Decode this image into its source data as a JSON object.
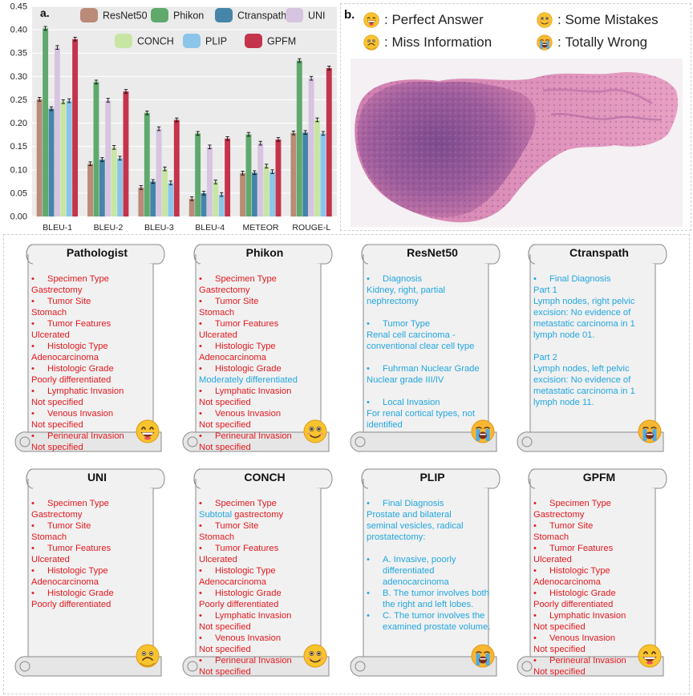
{
  "panel_a_label": "a.",
  "panel_b_label": "b.",
  "chart_data": {
    "type": "bar",
    "categories": [
      "BLEU-1",
      "BLEU-2",
      "BLEU-3",
      "BLEU-4",
      "METEOR",
      "ROUGE-L"
    ],
    "ylim": [
      0,
      0.45
    ],
    "yticks": [
      "0.00",
      "0.05",
      "0.10",
      "0.15",
      "0.20",
      "0.25",
      "0.30",
      "0.35",
      "0.40",
      "0.45"
    ],
    "grid": true,
    "legend_position": "top",
    "series": [
      {
        "name": "ResNet50",
        "color": "#b98b78",
        "values": [
          0.251,
          0.113,
          0.062,
          0.038,
          0.093,
          0.179
        ]
      },
      {
        "name": "Phikon",
        "color": "#5fa96c",
        "values": [
          0.403,
          0.288,
          0.222,
          0.178,
          0.176,
          0.334
        ]
      },
      {
        "name": "Ctranspath",
        "color": "#4585a8",
        "values": [
          0.231,
          0.122,
          0.075,
          0.05,
          0.094,
          0.18
        ]
      },
      {
        "name": "UNI",
        "color": "#d7c4e0",
        "values": [
          0.362,
          0.249,
          0.188,
          0.149,
          0.157,
          0.296
        ]
      },
      {
        "name": "CONCH",
        "color": "#c7e6a4",
        "values": [
          0.246,
          0.148,
          0.102,
          0.074,
          0.108,
          0.207
        ]
      },
      {
        "name": "PLIP",
        "color": "#8bc6ea",
        "values": [
          0.248,
          0.125,
          0.072,
          0.047,
          0.096,
          0.178
        ]
      },
      {
        "name": "GPFM",
        "color": "#c4344c",
        "values": [
          0.38,
          0.268,
          0.207,
          0.167,
          0.165,
          0.318
        ]
      }
    ]
  },
  "legend_b": {
    "perfect": "Perfect Answer",
    "some": "Some Mistakes",
    "miss": "Miss Information",
    "wrong": "Totally Wrong"
  },
  "cards": [
    {
      "title": "Pathologist",
      "emoji": "perfect",
      "lines": [
        {
          "t": "Specimen Type",
          "b": true,
          "c": "red"
        },
        {
          "t": "Gastrectomy",
          "c": "red"
        },
        {
          "t": "Tumor Site",
          "b": true,
          "c": "red"
        },
        {
          "t": "Stomach",
          "c": "red"
        },
        {
          "t": "Tumor Features",
          "b": true,
          "c": "red"
        },
        {
          "t": "Ulcerated",
          "c": "red"
        },
        {
          "t": "Histologic Type",
          "b": true,
          "c": "red"
        },
        {
          "t": "Adenocarcinoma",
          "c": "red"
        },
        {
          "t": "Histologic Grade",
          "b": true,
          "c": "red"
        },
        {
          "t": "Poorly differentiated",
          "c": "red"
        },
        {
          "t": "Lymphatic Invasion",
          "b": true,
          "c": "red"
        },
        {
          "t": "Not specified",
          "c": "red"
        },
        {
          "t": "Venous Invasion",
          "b": true,
          "c": "red"
        },
        {
          "t": "Not specified",
          "c": "red"
        },
        {
          "t": "Perineural Invasion",
          "b": true,
          "c": "red"
        },
        {
          "t": "Not specified",
          "c": "red"
        }
      ]
    },
    {
      "title": "Phikon",
      "emoji": "some",
      "lines": [
        {
          "t": "Specimen Type",
          "b": true,
          "c": "red"
        },
        {
          "t": "Gastrectomy",
          "c": "red"
        },
        {
          "t": "Tumor Site",
          "b": true,
          "c": "red"
        },
        {
          "t": "Stomach",
          "c": "red"
        },
        {
          "t": "Tumor Features",
          "b": true,
          "c": "red"
        },
        {
          "t": "Ulcerated",
          "c": "red"
        },
        {
          "t": "Histologic Type",
          "b": true,
          "c": "red"
        },
        {
          "t": "Adenocarcinoma",
          "c": "red"
        },
        {
          "t": "Histologic Grade",
          "b": true,
          "c": "red"
        },
        {
          "t": "Moderately differentiated",
          "c": "blue"
        },
        {
          "t": "Lymphatic Invasion",
          "b": true,
          "c": "red"
        },
        {
          "t": "Not specified",
          "c": "red"
        },
        {
          "t": "Venous Invasion",
          "b": true,
          "c": "red"
        },
        {
          "t": "Not specified",
          "c": "red"
        },
        {
          "t": "Perineural Invasion",
          "b": true,
          "c": "red"
        },
        {
          "t": "Not specified",
          "c": "red"
        }
      ]
    },
    {
      "title": "ResNet50",
      "emoji": "wrong",
      "lines": [
        {
          "t": "Diagnosis",
          "b": true,
          "c": "blue"
        },
        {
          "t": "Kidney, right, partial",
          "c": "blue"
        },
        {
          "t": "nephrectomy",
          "c": "blue"
        },
        {
          "gap": true
        },
        {
          "t": "Tumor Type",
          "b": true,
          "c": "blue"
        },
        {
          "t": "Renal cell carcinoma -",
          "c": "blue"
        },
        {
          "t": "conventional clear cell type",
          "c": "blue"
        },
        {
          "gap": true
        },
        {
          "t": "Fuhrman Nuclear Grade",
          "b": true,
          "c": "blue"
        },
        {
          "t": "Nuclear grade III/IV",
          "c": "blue"
        },
        {
          "gap": true
        },
        {
          "t": "Local Invasion",
          "b": true,
          "c": "blue"
        },
        {
          "t": "For renal cortical types, not",
          "c": "blue"
        },
        {
          "t": "identified",
          "c": "blue"
        }
      ]
    },
    {
      "title": "Ctranspath",
      "emoji": "wrong",
      "lines": [
        {
          "t": "Final Diagnosis",
          "b": true,
          "c": "blue"
        },
        {
          "t": "Part 1",
          "c": "blue"
        },
        {
          "t": "Lymph nodes, right pelvic",
          "c": "blue"
        },
        {
          "t": "excision: No evidence of",
          "c": "blue"
        },
        {
          "t": "metastatic carcinoma in 1",
          "c": "blue"
        },
        {
          "t": "lymph node 01.",
          "c": "blue"
        },
        {
          "gap": true
        },
        {
          "t": "Part 2",
          "c": "blue"
        },
        {
          "t": "Lymph nodes, left pelvic",
          "c": "blue"
        },
        {
          "t": "excision: No evidence of",
          "c": "blue"
        },
        {
          "t": "metastatic carcinoma in 1",
          "c": "blue"
        },
        {
          "t": "lymph node 11.",
          "c": "blue"
        }
      ]
    },
    {
      "title": "UNI",
      "emoji": "miss",
      "lines": [
        {
          "t": "Specimen Type",
          "b": true,
          "c": "red"
        },
        {
          "t": "Gastrectomy",
          "c": "red"
        },
        {
          "t": "Tumor Site",
          "b": true,
          "c": "red"
        },
        {
          "t": "Stomach",
          "c": "red"
        },
        {
          "t": "Tumor Features",
          "b": true,
          "c": "red"
        },
        {
          "t": "Ulcerated",
          "c": "red"
        },
        {
          "t": "Histologic Type",
          "b": true,
          "c": "red"
        },
        {
          "t": "Adenocarcinoma",
          "c": "red"
        },
        {
          "t": "Histologic Grade",
          "b": true,
          "c": "red"
        },
        {
          "t": "Poorly differentiated",
          "c": "red"
        }
      ]
    },
    {
      "title": "CONCH",
      "emoji": "some",
      "lines": [
        {
          "t": "Specimen Type",
          "b": true,
          "c": "red"
        },
        {
          "parts": [
            {
              "t": "Subtotal",
              "c": "blue"
            },
            {
              "t": " gastrectomy",
              "c": "red"
            }
          ]
        },
        {
          "t": "Tumor Site",
          "b": true,
          "c": "red"
        },
        {
          "t": "Stomach",
          "c": "red"
        },
        {
          "t": "Tumor Features",
          "b": true,
          "c": "red"
        },
        {
          "t": "Ulcerated",
          "c": "red"
        },
        {
          "t": "Histologic Type",
          "b": true,
          "c": "red"
        },
        {
          "t": "Adenocarcinoma",
          "c": "red"
        },
        {
          "t": "Histologic Grade",
          "b": true,
          "c": "red"
        },
        {
          "t": "Poorly differentiated",
          "c": "red"
        },
        {
          "t": "Lymphatic Invasion",
          "b": true,
          "c": "red"
        },
        {
          "t": "Not specified",
          "c": "red"
        },
        {
          "t": "Venous Invasion",
          "b": true,
          "c": "red"
        },
        {
          "t": "Not specified",
          "c": "red"
        },
        {
          "t": "Perineural Invasion",
          "b": true,
          "c": "red"
        },
        {
          "t": "Not specified",
          "c": "red"
        }
      ]
    },
    {
      "title": "PLIP",
      "emoji": "wrong",
      "lines": [
        {
          "t": "Final Diagnosis",
          "b": true,
          "c": "blue"
        },
        {
          "t": "Prostate and bilateral",
          "c": "blue"
        },
        {
          "t": "seminal vesicles, radical",
          "c": "blue"
        },
        {
          "t": "prostatectomy:",
          "c": "blue"
        },
        {
          "gap": true
        },
        {
          "t": "A. Invasive, poorly",
          "b": true,
          "c": "blue"
        },
        {
          "t": "differentiated",
          "c": "blue",
          "ind": true
        },
        {
          "t": "adenocarcinoma",
          "c": "blue",
          "ind": true
        },
        {
          "t": "B. The tumor involves both",
          "b": true,
          "c": "blue"
        },
        {
          "t": "the right and left lobes.",
          "c": "blue",
          "ind": true
        },
        {
          "t": "C. The tumor involves the",
          "b": true,
          "c": "blue"
        },
        {
          "t": "examined prostate volume.",
          "c": "blue",
          "ind": true
        }
      ]
    },
    {
      "title": "GPFM",
      "emoji": "perfect",
      "lines": [
        {
          "t": "Specimen Type",
          "b": true,
          "c": "red"
        },
        {
          "t": "Gastrectomy",
          "c": "red"
        },
        {
          "t": "Tumor Site",
          "b": true,
          "c": "red"
        },
        {
          "t": "Stomach",
          "c": "red"
        },
        {
          "t": "Tumor Features",
          "b": true,
          "c": "red"
        },
        {
          "t": "Ulcerated",
          "c": "red"
        },
        {
          "t": "Histologic Type",
          "b": true,
          "c": "red"
        },
        {
          "t": "Adenocarcinoma",
          "c": "red"
        },
        {
          "t": "Histologic Grade",
          "b": true,
          "c": "red"
        },
        {
          "t": "Poorly differentiated",
          "c": "red"
        },
        {
          "t": "Lymphatic Invasion",
          "b": true,
          "c": "red"
        },
        {
          "t": "Not specified",
          "c": "red"
        },
        {
          "t": "Venous Invasion",
          "b": true,
          "c": "red"
        },
        {
          "t": "Not specified",
          "c": "red"
        },
        {
          "t": "Perineural Invasion",
          "b": true,
          "c": "red"
        },
        {
          "t": "Not specified",
          "c": "red"
        }
      ]
    }
  ]
}
